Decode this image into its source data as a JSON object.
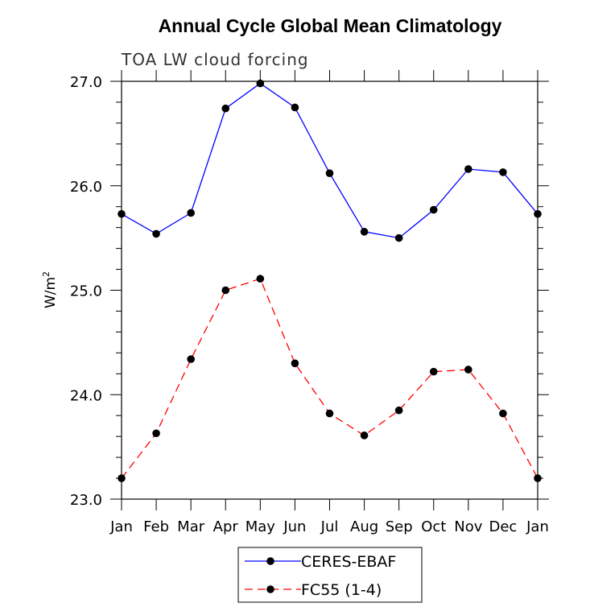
{
  "chart_data": {
    "type": "line",
    "title": "Annual Cycle Global Mean Climatology",
    "subtitle": "TOA LW cloud forcing",
    "ylabel": "W/m",
    "ylabel_sup": "2",
    "xlabel": "",
    "categories": [
      "Jan",
      "Feb",
      "Mar",
      "Apr",
      "May",
      "Jun",
      "Jul",
      "Aug",
      "Sep",
      "Oct",
      "Nov",
      "Dec",
      "Jan"
    ],
    "ylim": [
      23.0,
      27.0
    ],
    "yticks": [
      23.0,
      24.0,
      25.0,
      26.0,
      27.0
    ],
    "ytick_labels": [
      "23.0",
      "24.0",
      "25.0",
      "26.0",
      "27.0"
    ],
    "grid": false,
    "legend_position": "bottom-center",
    "series": [
      {
        "name": "CERES-EBAF",
        "color": "#0000ff",
        "dash": "solid",
        "values": [
          25.73,
          25.54,
          25.74,
          26.74,
          26.98,
          26.75,
          26.12,
          25.56,
          25.5,
          25.77,
          26.16,
          26.13,
          25.73
        ]
      },
      {
        "name": "FC55 (1-4)",
        "color": "#ff0000",
        "dash": "dashed",
        "values": [
          23.2,
          23.63,
          24.34,
          25.0,
          25.11,
          24.3,
          23.82,
          23.61,
          23.85,
          24.22,
          24.24,
          23.82,
          23.2
        ]
      }
    ]
  }
}
